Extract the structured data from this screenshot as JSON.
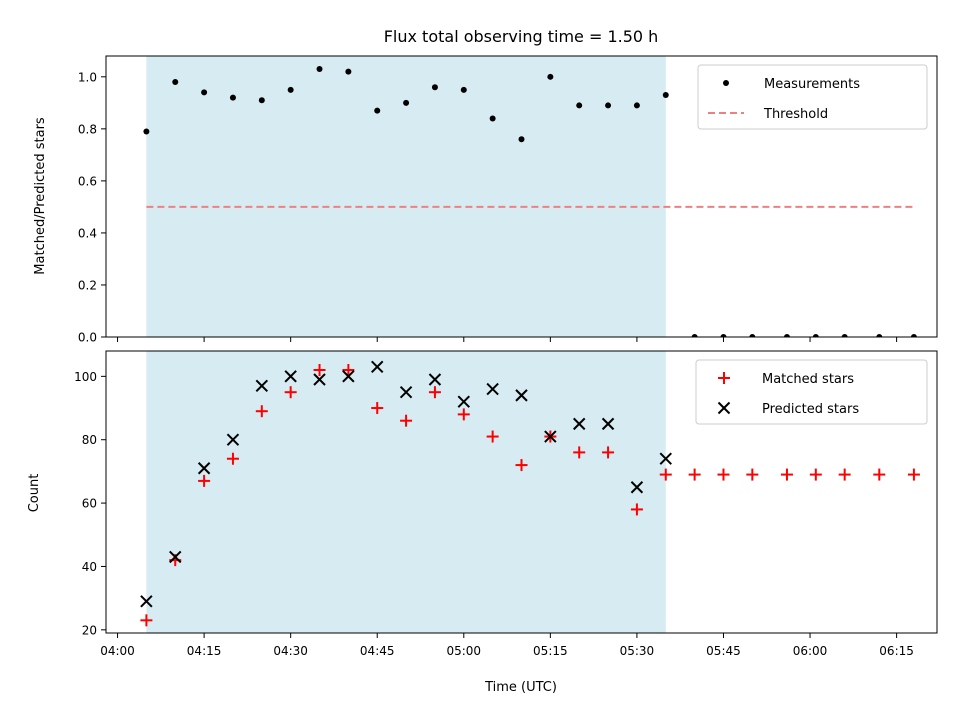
{
  "chart_data": [
    {
      "type": "scatter",
      "title": "Flux total observing time = 1.50 h",
      "xlabel": "",
      "ylabel": "Matched/Predicted stars",
      "ylim": [
        0,
        1.08
      ],
      "yticks": [
        "0.0",
        "0.2",
        "0.4",
        "0.6",
        "0.8",
        "1.0"
      ],
      "xlim": [
        "03:58",
        "06:22"
      ],
      "shaded_span": [
        "04:05",
        "05:35"
      ],
      "shade_color": "#add8e6",
      "legend_position": "upper right",
      "series": [
        {
          "name": "Measurements",
          "marker": "dot",
          "color": "#000000",
          "points": [
            [
              "04:05",
              0.79
            ],
            [
              "04:10",
              0.98
            ],
            [
              "04:15",
              0.94
            ],
            [
              "04:20",
              0.92
            ],
            [
              "04:25",
              0.91
            ],
            [
              "04:30",
              0.95
            ],
            [
              "04:35",
              1.03
            ],
            [
              "04:40",
              1.02
            ],
            [
              "04:45",
              0.87
            ],
            [
              "04:50",
              0.9
            ],
            [
              "04:55",
              0.96
            ],
            [
              "05:00",
              0.95
            ],
            [
              "05:05",
              0.84
            ],
            [
              "05:10",
              0.76
            ],
            [
              "05:15",
              1.0
            ],
            [
              "05:20",
              0.89
            ],
            [
              "05:25",
              0.89
            ],
            [
              "05:30",
              0.89
            ],
            [
              "05:35",
              0.93
            ],
            [
              "05:40",
              0.0
            ],
            [
              "05:45",
              0.0
            ],
            [
              "05:50",
              0.0
            ],
            [
              "05:56",
              0.0
            ],
            [
              "06:01",
              0.0
            ],
            [
              "06:06",
              0.0
            ],
            [
              "06:12",
              0.0
            ],
            [
              "06:18",
              0.0
            ]
          ]
        },
        {
          "name": "Threshold",
          "style": "dashed-line",
          "color": "#f08080",
          "points": [
            [
              "04:05",
              0.5
            ],
            [
              "06:18",
              0.5
            ]
          ]
        }
      ]
    },
    {
      "type": "scatter",
      "title": "",
      "xlabel": "Time (UTC)",
      "ylabel": "Count",
      "ylim": [
        19,
        108
      ],
      "yticks": [
        "20",
        "40",
        "60",
        "80",
        "100"
      ],
      "xticks": [
        "04:00",
        "04:15",
        "04:30",
        "04:45",
        "05:00",
        "05:15",
        "05:30",
        "05:45",
        "06:00",
        "06:15"
      ],
      "xlim": [
        "03:58",
        "06:22"
      ],
      "shaded_span": [
        "04:05",
        "05:35"
      ],
      "shade_color": "#add8e6",
      "legend_position": "upper right",
      "series": [
        {
          "name": "Matched stars",
          "marker": "plus",
          "color": "#ff0000",
          "points": [
            [
              "04:05",
              23
            ],
            [
              "04:10",
              42
            ],
            [
              "04:15",
              67
            ],
            [
              "04:20",
              74
            ],
            [
              "04:25",
              89
            ],
            [
              "04:30",
              95
            ],
            [
              "04:35",
              102
            ],
            [
              "04:40",
              102
            ],
            [
              "04:45",
              90
            ],
            [
              "04:50",
              86
            ],
            [
              "04:55",
              95
            ],
            [
              "05:00",
              88
            ],
            [
              "05:05",
              81
            ],
            [
              "05:10",
              72
            ],
            [
              "05:15",
              81
            ],
            [
              "05:20",
              76
            ],
            [
              "05:25",
              76
            ],
            [
              "05:30",
              58
            ],
            [
              "05:35",
              69
            ],
            [
              "05:40",
              69
            ],
            [
              "05:45",
              69
            ],
            [
              "05:50",
              69
            ],
            [
              "05:56",
              69
            ],
            [
              "06:01",
              69
            ],
            [
              "06:06",
              69
            ],
            [
              "06:12",
              69
            ],
            [
              "06:18",
              69
            ]
          ]
        },
        {
          "name": "Predicted stars",
          "marker": "x",
          "color": "#000000",
          "points": [
            [
              "04:05",
              29
            ],
            [
              "04:10",
              43
            ],
            [
              "04:15",
              71
            ],
            [
              "04:20",
              80
            ],
            [
              "04:25",
              97
            ],
            [
              "04:30",
              100
            ],
            [
              "04:35",
              99
            ],
            [
              "04:40",
              100
            ],
            [
              "04:45",
              103
            ],
            [
              "04:50",
              95
            ],
            [
              "04:55",
              99
            ],
            [
              "05:00",
              92
            ],
            [
              "05:05",
              96
            ],
            [
              "05:10",
              94
            ],
            [
              "05:15",
              81
            ],
            [
              "05:20",
              85
            ],
            [
              "05:25",
              85
            ],
            [
              "05:30",
              65
            ],
            [
              "05:35",
              74
            ]
          ]
        }
      ]
    }
  ]
}
